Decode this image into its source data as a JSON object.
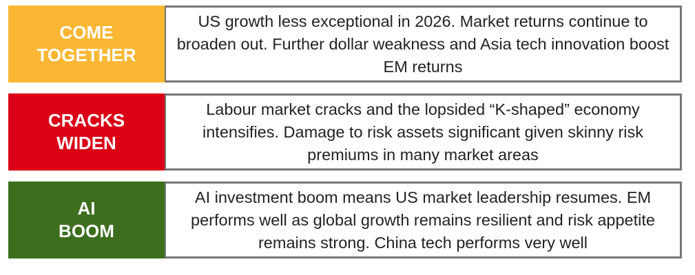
{
  "scenarios": [
    {
      "label_lines": [
        "COME",
        "TOGETHER"
      ],
      "color": "#FBB734",
      "description": "US growth less exceptional in 2026. Market returns continue to broaden out. Further dollar weakness and Asia tech innovation boost EM returns"
    },
    {
      "label_lines": [
        "CRACKS",
        "WIDEN"
      ],
      "color": "#DA0016",
      "description": "Labour market cracks and the lopsided “K-shaped” economy intensifies. Damage to risk assets significant given skinny risk premiums in many market areas"
    },
    {
      "label_lines": [
        "AI",
        "BOOM"
      ],
      "color": "#3D6E1E",
      "description": "AI investment boom means US market leadership resumes. EM performs well as global growth remains resilient and risk appetite remains strong. China tech performs very well"
    }
  ]
}
